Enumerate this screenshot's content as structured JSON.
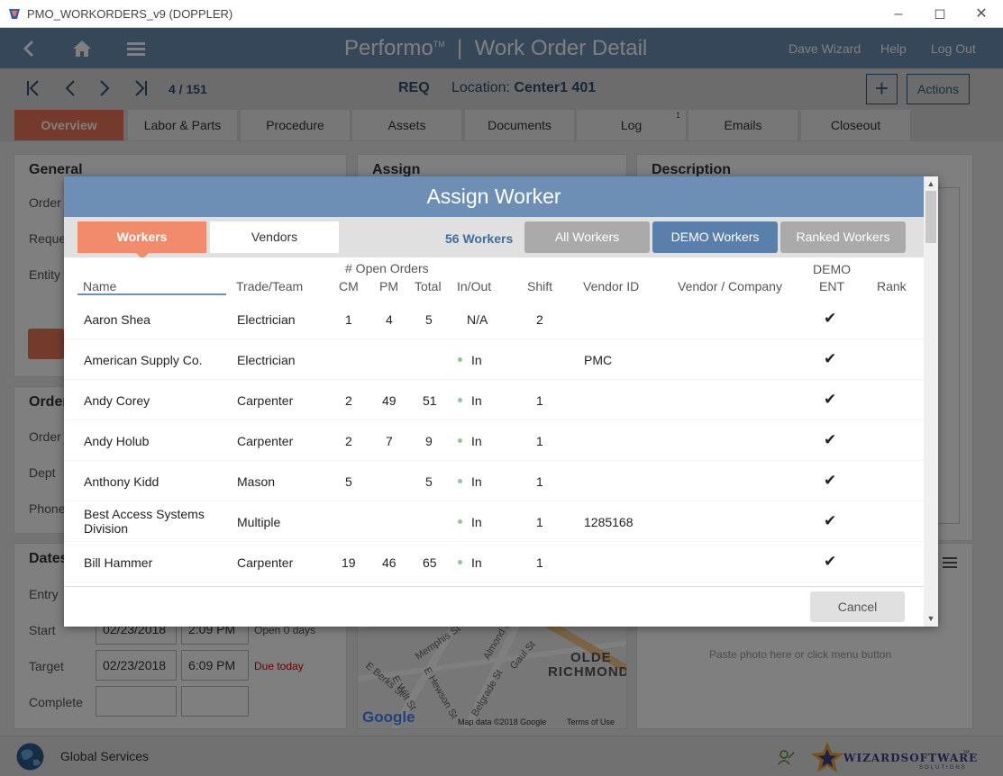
{
  "window": {
    "title": "PMO_WORKORDERS_v9 (DOPPLER)"
  },
  "header": {
    "brand": "Performo",
    "trademark": "TM",
    "separator": "|",
    "page_title": "Work Order Detail",
    "user": "Dave Wizard",
    "help": "Help",
    "logout": "Log Out"
  },
  "navbar": {
    "record_counter": "4 / 151",
    "status": "REQ",
    "location_label": "Location:",
    "location_value": "Center1 401",
    "actions_label": "Actions"
  },
  "tabs": [
    {
      "label": "Overview",
      "active": true
    },
    {
      "label": "Labor & Parts"
    },
    {
      "label": "Procedure"
    },
    {
      "label": "Assets"
    },
    {
      "label": "Documents"
    },
    {
      "label": "Log",
      "badge": "1"
    },
    {
      "label": "Emails"
    },
    {
      "label": "Closeout"
    }
  ],
  "background": {
    "general_title": "General",
    "general_fields": [
      "Order",
      "Reque",
      "Entity"
    ],
    "assign_title": "Assign",
    "description_title": "Description",
    "order_title": "Order",
    "order_fields": [
      "Order",
      "Dept",
      "Phone"
    ],
    "dates_title": "Dates",
    "dates": {
      "entry_label": "Entry",
      "start_label": "Start",
      "start_date": "02/23/2018",
      "start_time": "2:09 PM",
      "start_note": "Open 0 days",
      "target_label": "Target",
      "target_date": "02/23/2018",
      "target_time": "6:09 PM",
      "target_note": "Due today",
      "complete_label": "Complete"
    },
    "map": {
      "street_1": "Memphis St",
      "street_2": "E Berks St",
      "street_3": "E Wilt St",
      "street_4": "E Hewson St",
      "street_5": "Belgrade St",
      "street_6": "Gaul St",
      "street_7": "Almond St",
      "neighborhood_line1": "OLDE",
      "neighborhood_line2": "RICHMOND",
      "google": "Google",
      "map_data": "Map data ©2018 Google",
      "terms": "Terms of Use"
    },
    "photo_hint": "Paste photo here or click menu button"
  },
  "footer": {
    "org": "Global Services",
    "logo_text": "WIZARDSOFTWARE",
    "logo_tm": "™",
    "logo_sub": "SOLUTIONS"
  },
  "modal": {
    "title": "Assign Worker",
    "tab_workers": "Workers",
    "tab_vendors": "Vendors",
    "worker_count": "56 Workers",
    "filter_all": "All Workers",
    "filter_demo": "DEMO Workers",
    "filter_ranked": "Ranked Workers",
    "columns": {
      "open_orders": "# Open Orders",
      "demo": "DEMO",
      "name": "Name",
      "trade": "Trade/Team",
      "cm": "CM",
      "pm": "PM",
      "total": "Total",
      "inout": "In/Out",
      "shift": "Shift",
      "vendor_id": "Vendor ID",
      "vendor_company": "Vendor / Company",
      "ent": "ENT",
      "rank": "Rank"
    },
    "rows": [
      {
        "name": "Aaron Shea",
        "trade": "Electrician",
        "cm": "1",
        "pm": "4",
        "total": "5",
        "inout": "N/A",
        "dot": false,
        "shift": "2",
        "vendor_id": "",
        "check": "✔"
      },
      {
        "name": "American Supply Co.",
        "trade": "Electrician",
        "cm": "",
        "pm": "",
        "total": "",
        "inout": "In",
        "dot": true,
        "shift": "",
        "vendor_id": "PMC",
        "check": "✔"
      },
      {
        "name": "Andy Corey",
        "trade": "Carpenter",
        "cm": "2",
        "pm": "49",
        "total": "51",
        "inout": "In",
        "dot": true,
        "shift": "1",
        "vendor_id": "",
        "check": "✔"
      },
      {
        "name": "Andy Holub",
        "trade": "Carpenter",
        "cm": "2",
        "pm": "7",
        "total": "9",
        "inout": "In",
        "dot": true,
        "shift": "1",
        "vendor_id": "",
        "check": "✔"
      },
      {
        "name": "Anthony Kidd",
        "trade": "Mason",
        "cm": "5",
        "pm": "",
        "total": "5",
        "inout": "In",
        "dot": true,
        "shift": "1",
        "vendor_id": "",
        "check": "✔"
      },
      {
        "name_line1": "Best Access Systems",
        "name_line2": "Division",
        "trade": "Multiple",
        "cm": "",
        "pm": "",
        "total": "",
        "inout": "In",
        "dot": true,
        "shift": "1",
        "vendor_id": "1285168",
        "check": "✔"
      },
      {
        "name": "Bill Hammer",
        "trade": "Carpenter",
        "cm": "19",
        "pm": "46",
        "total": "65",
        "inout": "In",
        "dot": true,
        "shift": "1",
        "vendor_id": "",
        "check": "✔"
      }
    ],
    "cancel": "Cancel"
  }
}
